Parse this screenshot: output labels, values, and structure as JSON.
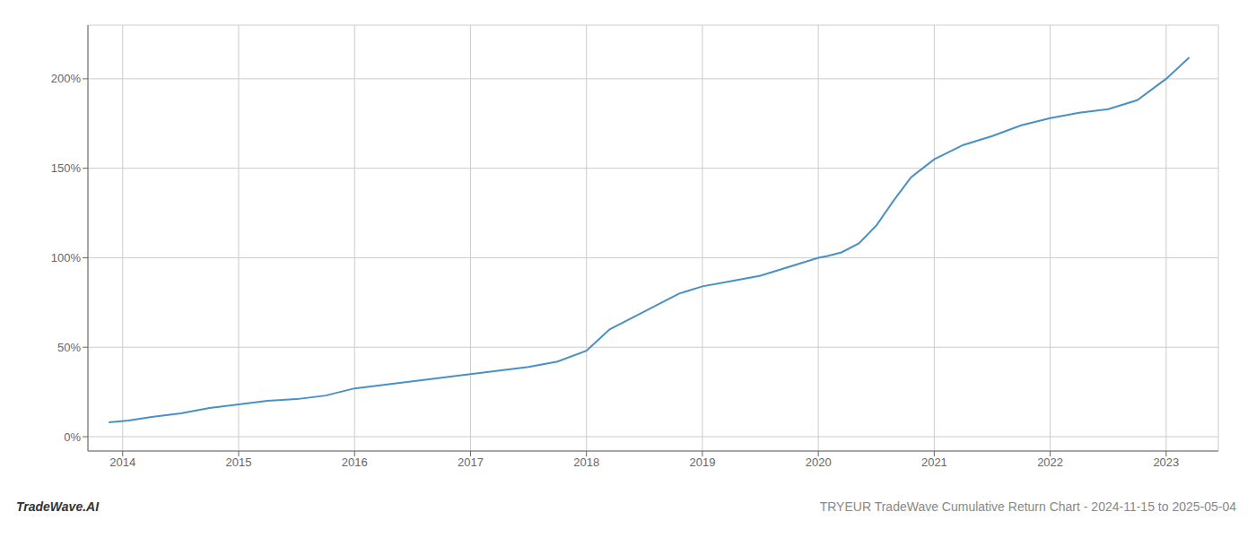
{
  "chart_data": {
    "type": "line",
    "title": "TRYEUR TradeWave Cumulative Return Chart - 2024-11-15 to 2025-05-04",
    "annotations": [
      "TradeWave.AI"
    ],
    "x": [
      2013.88,
      2014.05,
      2014.25,
      2014.5,
      2014.75,
      2015.0,
      2015.25,
      2015.5,
      2015.75,
      2016.0,
      2016.25,
      2016.5,
      2016.75,
      2017.0,
      2017.25,
      2017.5,
      2017.75,
      2018.0,
      2018.1,
      2018.2,
      2018.35,
      2018.5,
      2018.65,
      2018.8,
      2019.0,
      2019.25,
      2019.5,
      2019.75,
      2020.0,
      2020.08,
      2020.2,
      2020.35,
      2020.5,
      2020.65,
      2020.8,
      2021.0,
      2021.25,
      2021.5,
      2021.75,
      2022.0,
      2022.25,
      2022.5,
      2022.75,
      2023.0,
      2023.2
    ],
    "values": [
      8,
      9,
      11,
      13,
      16,
      18,
      20,
      21,
      23,
      27,
      29,
      31,
      33,
      35,
      37,
      39,
      42,
      48,
      54,
      60,
      65,
      70,
      75,
      80,
      84,
      87,
      90,
      95,
      100,
      101,
      103,
      108,
      118,
      132,
      145,
      155,
      163,
      168,
      174,
      178,
      181,
      183,
      188,
      200,
      212
    ],
    "color": "#4a90c4",
    "xlim": [
      2013.7,
      2023.45
    ],
    "xticks": [
      2014,
      2015,
      2016,
      2017,
      2018,
      2019,
      2020,
      2021,
      2022,
      2023
    ],
    "ylim": [
      -8,
      230
    ],
    "yticks": [
      {
        "value": 0,
        "label": "0%"
      },
      {
        "value": 50,
        "label": "50%"
      },
      {
        "value": 100,
        "label": "100%"
      },
      {
        "value": 150,
        "label": "150%"
      },
      {
        "value": 200,
        "label": "200%"
      }
    ],
    "grid": true
  }
}
